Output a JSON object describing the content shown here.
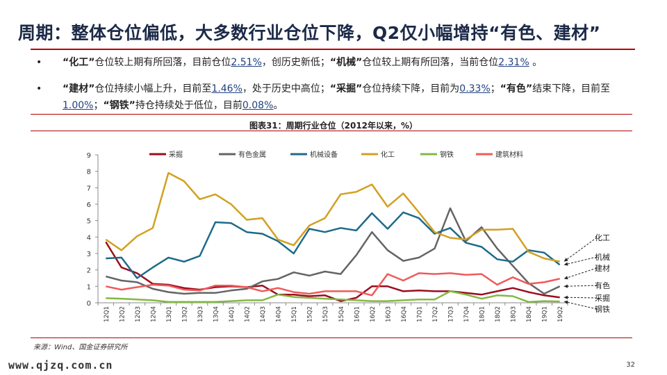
{
  "slide": {
    "title": "周期：整体仓位偏低，大多数行业仓位下降，Q2仅小幅增持“有色、建材”",
    "page_number": "32",
    "watermark": "www.qjzq.com.cn",
    "source": "来源：Wind、国金证券研究所"
  },
  "bullets": [
    {
      "marker": "•",
      "parts": [
        {
          "text": "“化工”",
          "style": "key"
        },
        {
          "text": "仓位较上期有所回落，目前仓位",
          "style": ""
        },
        {
          "text": "2.51%",
          "style": "hl"
        },
        {
          "text": "，创历史新低；",
          "style": ""
        },
        {
          "text": "“机械”",
          "style": "key"
        },
        {
          "text": "仓位较上期有所回落，当前仓位",
          "style": ""
        },
        {
          "text": "2.31%",
          "style": "hl"
        },
        {
          "text": " 。",
          "style": ""
        }
      ]
    },
    {
      "marker": "•",
      "parts": [
        {
          "text": "“建材”",
          "style": "key"
        },
        {
          "text": "仓位持续小幅上升，目前至",
          "style": ""
        },
        {
          "text": "1.46%",
          "style": "hl"
        },
        {
          "text": "，处于历史中高位；",
          "style": ""
        },
        {
          "text": "“采掘”",
          "style": "key"
        },
        {
          "text": "仓位持续下降，目前为",
          "style": ""
        },
        {
          "text": "0.33%",
          "style": "hl"
        },
        {
          "text": "；",
          "style": ""
        },
        {
          "text": "“有色”",
          "style": "key"
        },
        {
          "text": "结束下降，目前至",
          "style": ""
        },
        {
          "text": "1.00%",
          "style": "hl"
        },
        {
          "text": "；",
          "style": ""
        },
        {
          "text": "“钢铁”",
          "style": "key"
        },
        {
          "text": "持仓持续处于低位，目前",
          "style": ""
        },
        {
          "text": "0.08%",
          "style": "hl"
        },
        {
          "text": "。",
          "style": ""
        }
      ]
    }
  ],
  "chart_data": {
    "type": "line",
    "title": "图表31：周期行业仓位（2012年以来，%）",
    "xlabel": "",
    "ylabel": "",
    "ylim": [
      0,
      9
    ],
    "yticks": [
      0,
      1,
      2,
      3,
      4,
      5,
      6,
      7,
      8,
      9
    ],
    "grid": false,
    "legend_position": "top",
    "categories": [
      "2012Q1",
      "2012Q2",
      "2012Q3",
      "2012Q4",
      "2013Q1",
      "2013Q2",
      "2013Q3",
      "2013Q4",
      "2014Q1",
      "2014Q2",
      "2014Q3",
      "2014Q4",
      "2015Q1",
      "2015Q2",
      "2015Q3",
      "2015Q4",
      "2016Q1",
      "2016Q2",
      "2016Q3",
      "2016Q4",
      "2017Q1",
      "2017Q2",
      "2017Q3",
      "2017Q4",
      "2018Q1",
      "2018Q2",
      "2018Q3",
      "2018Q4",
      "2019Q1",
      "2019Q2"
    ],
    "series": [
      {
        "name": "采掘",
        "color": "#9b0d1e",
        "values": [
          3.7,
          2.15,
          1.8,
          1.15,
          1.1,
          0.9,
          0.8,
          0.95,
          1.0,
          0.95,
          1.05,
          0.5,
          0.5,
          0.4,
          0.45,
          0.1,
          0.3,
          1.0,
          1.0,
          0.7,
          0.75,
          0.7,
          0.7,
          0.6,
          0.5,
          0.7,
          0.9,
          0.65,
          0.45,
          0.33
        ]
      },
      {
        "name": "有色金属",
        "color": "#646464",
        "values": [
          1.6,
          1.35,
          1.25,
          0.85,
          0.65,
          0.55,
          0.6,
          0.6,
          0.75,
          0.85,
          1.3,
          1.45,
          1.85,
          1.65,
          1.9,
          1.75,
          2.9,
          4.3,
          3.2,
          2.55,
          2.75,
          3.3,
          5.75,
          3.75,
          4.6,
          3.3,
          2.25,
          1.2,
          0.55,
          1.0
        ]
      },
      {
        "name": "机械设备",
        "color": "#1d6a8a",
        "values": [
          2.7,
          2.75,
          1.5,
          2.15,
          2.75,
          2.5,
          2.85,
          4.9,
          4.85,
          4.3,
          4.2,
          3.75,
          3.0,
          4.5,
          4.3,
          4.55,
          4.4,
          5.45,
          4.5,
          5.5,
          5.15,
          4.2,
          4.55,
          3.65,
          3.4,
          2.65,
          2.5,
          3.2,
          3.05,
          2.31
        ]
      },
      {
        "name": "化工",
        "color": "#d2a021",
        "values": [
          3.85,
          3.2,
          4.05,
          4.55,
          7.9,
          7.4,
          6.3,
          6.6,
          6.0,
          5.05,
          5.15,
          3.85,
          3.5,
          4.7,
          5.15,
          6.6,
          6.75,
          7.2,
          5.85,
          6.65,
          5.5,
          4.3,
          3.95,
          3.85,
          4.45,
          4.45,
          4.5,
          3.1,
          2.7,
          2.51
        ]
      },
      {
        "name": "钢铁",
        "color": "#82b941",
        "values": [
          0.28,
          0.25,
          0.2,
          0.15,
          0.05,
          0.05,
          0.05,
          0.05,
          0.1,
          0.15,
          0.15,
          0.5,
          0.35,
          0.3,
          0.25,
          0.2,
          0.15,
          0.1,
          0.1,
          0.15,
          0.2,
          0.2,
          0.7,
          0.5,
          0.25,
          0.45,
          0.4,
          0.05,
          0.1,
          0.08
        ]
      },
      {
        "name": "建筑材料",
        "color": "#f05a5a",
        "values": [
          1.0,
          0.8,
          0.95,
          1.1,
          1.05,
          0.8,
          0.75,
          1.05,
          1.05,
          0.95,
          0.7,
          0.9,
          0.65,
          0.55,
          0.7,
          0.7,
          0.7,
          0.45,
          1.75,
          1.35,
          1.8,
          1.75,
          1.8,
          1.7,
          1.75,
          1.1,
          1.55,
          1.15,
          1.25,
          1.46
        ]
      }
    ],
    "end_labels": [
      {
        "text": "化工",
        "series": "化工"
      },
      {
        "text": "机械",
        "series": "机械设备"
      },
      {
        "text": "建材",
        "series": "建筑材料"
      },
      {
        "text": "有色",
        "series": "有色金属"
      },
      {
        "text": "采掘",
        "series": "采掘"
      },
      {
        "text": "钢铁",
        "series": "钢铁"
      }
    ]
  }
}
